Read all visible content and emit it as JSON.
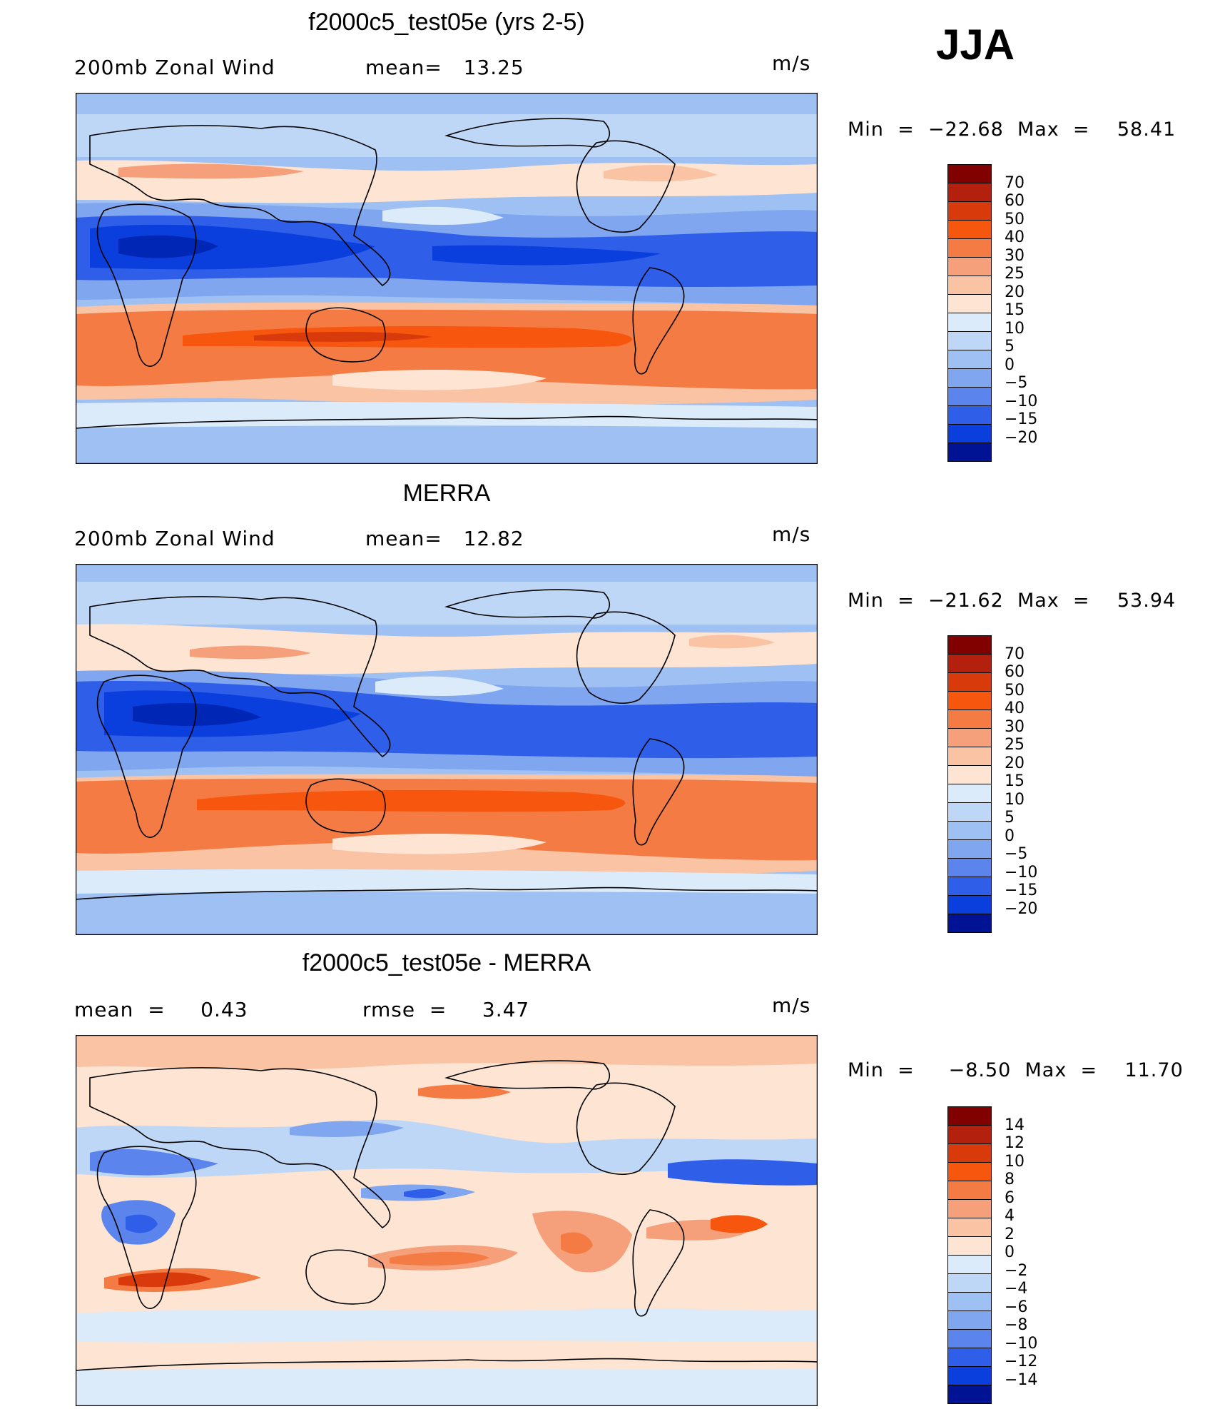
{
  "season": "JJA",
  "palettes": {
    "abs": [
      "#810000",
      "#b3200e",
      "#d83a0c",
      "#f7560f",
      "#f47c44",
      "#f5a07a",
      "#f9c3a4",
      "#fde4d3",
      "#dcebfa",
      "#bfd7f6",
      "#9fc0f2",
      "#80a6ef",
      "#5b84ed",
      "#2f5ee8",
      "#0a3fdd",
      "#0026b5",
      "#001394"
    ],
    "diff": [
      "#810000",
      "#b3200e",
      "#d83a0c",
      "#f7560f",
      "#f47c44",
      "#f5a07a",
      "#f9c3a4",
      "#fde4d3",
      "#dcebfa",
      "#bfd7f6",
      "#9fc0f2",
      "#80a6ef",
      "#5b84ed",
      "#2f5ee8",
      "#0a3fdd",
      "#0026b5",
      "#001394"
    ]
  },
  "panels": [
    {
      "title": "f2000c5_test05e (yrs 2-5)",
      "left_label": "200mb Zonal Wind",
      "mid_label": "mean=   13.25",
      "units": "m/s",
      "minmax": "Min  =  −22.68  Max  =    58.41",
      "levels": [
        "70",
        "60",
        "50",
        "40",
        "30",
        "25",
        "20",
        "15",
        "10",
        "5",
        "0",
        "−5",
        "−10",
        "−15",
        "−20"
      ]
    },
    {
      "title": "MERRA",
      "left_label": "200mb Zonal Wind",
      "mid_label": "mean=   12.82",
      "units": "m/s",
      "minmax": "Min  =  −21.62  Max  =    53.94",
      "levels": [
        "70",
        "60",
        "50",
        "40",
        "30",
        "25",
        "20",
        "15",
        "10",
        "5",
        "0",
        "−5",
        "−10",
        "−15",
        "−20"
      ]
    },
    {
      "title": "f2000c5_test05e - MERRA",
      "left_label": "mean  =     0.43",
      "mid_label": "rmse  =     3.47",
      "units": "m/s",
      "minmax": "Min  =     −8.50  Max  =    11.70",
      "levels": [
        "14",
        "12",
        "10",
        "8",
        "6",
        "4",
        "2",
        "0",
        "−2",
        "−4",
        "−6",
        "−8",
        "−10",
        "−12",
        "−14"
      ]
    }
  ]
}
